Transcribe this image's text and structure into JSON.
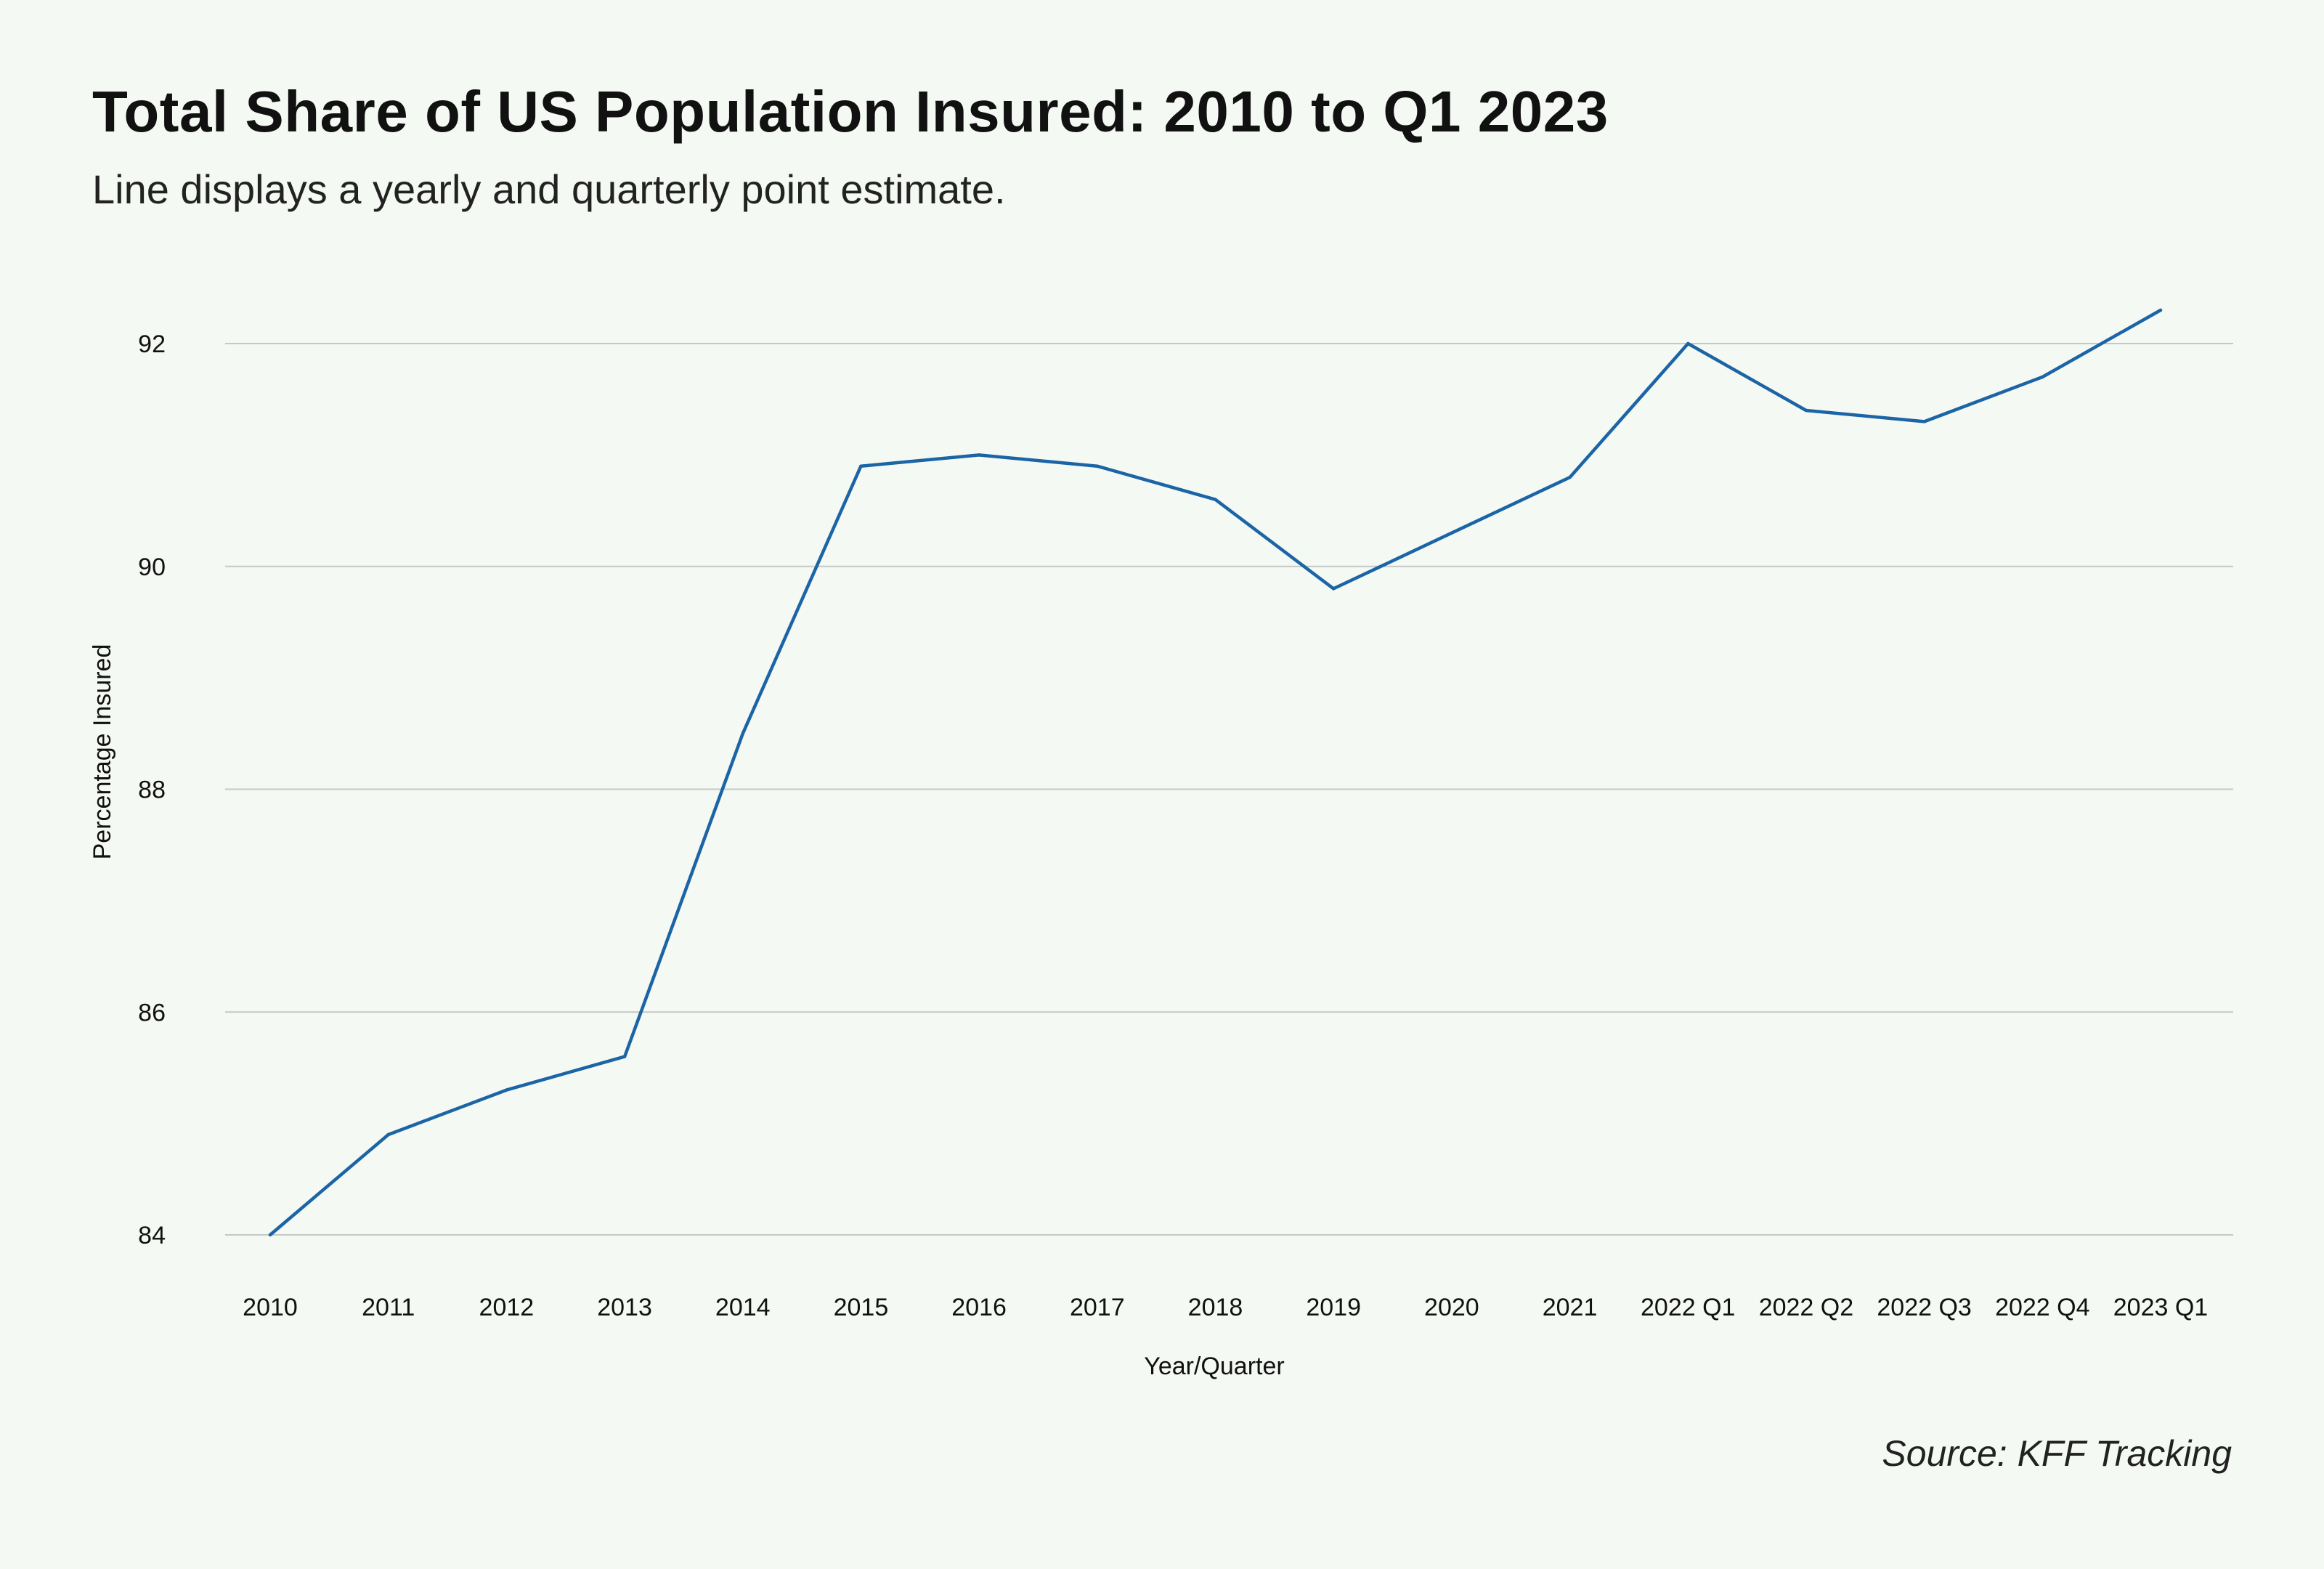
{
  "header": {
    "title": "Total Share of US Population Insured: 2010 to Q1 2023",
    "subtitle": "Line displays a yearly and quarterly point estimate."
  },
  "footer": {
    "source": "Source: KFF Tracking"
  },
  "colors": {
    "line": "#1b64a6",
    "grid": "#c4c9c6",
    "background": "#f5f9f3"
  },
  "chart_data": {
    "type": "line",
    "title": "Total Share of US Population Insured: 2010 to Q1 2023",
    "subtitle": "Line displays a yearly and quarterly point estimate.",
    "xlabel": "Year/Quarter",
    "ylabel": "Percentage Insured",
    "ylim": [
      84,
      92.3
    ],
    "yticks": [
      84,
      86,
      88,
      90,
      92
    ],
    "grid": "horizontal",
    "legend": "none",
    "categories": [
      "2010",
      "2011",
      "2012",
      "2013",
      "2014",
      "2015",
      "2016",
      "2017",
      "2018",
      "2019",
      "2020",
      "2021",
      "2022 Q1",
      "2022 Q2",
      "2022 Q3",
      "2022 Q4",
      "2023 Q1"
    ],
    "series": [
      {
        "values": [
          84.0,
          84.9,
          85.3,
          85.6,
          88.5,
          90.9,
          91.0,
          90.9,
          90.6,
          89.8,
          90.3,
          90.8,
          92.0,
          91.4,
          91.3,
          91.7,
          92.3
        ]
      }
    ]
  }
}
